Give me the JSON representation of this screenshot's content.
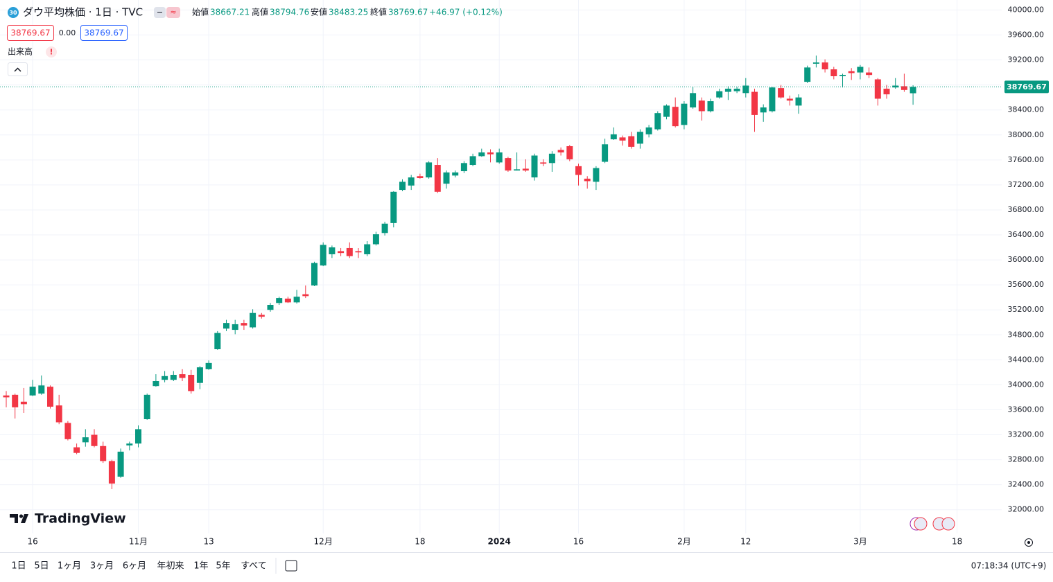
{
  "chart_data": {
    "type": "candlestick",
    "title": "ダウ平均株価 · 1日 · TVC",
    "ohlc_labels": [
      "始値",
      "高値",
      "安値",
      "終値"
    ],
    "change": "+46.97 (+0.12%)",
    "spread": "0.00",
    "volume_label": "出来高",
    "up_color": "#089981",
    "down_color": "#f23645",
    "open": [
      33830,
      33840,
      33730,
      33830,
      33860,
      33970,
      33670,
      33390,
      33000,
      33080,
      33200,
      33020,
      32780,
      32530,
      33030,
      33060,
      33450,
      33980,
      34080,
      34080,
      34170,
      34160,
      34030,
      34250,
      34570,
      34900,
      34880,
      34990,
      34920,
      35120,
      35200,
      35310,
      35380,
      35320,
      35450,
      35590,
      35910,
      36090,
      36140,
      36190,
      36140,
      36090,
      36250,
      36430,
      36590,
      37120,
      37190,
      37340,
      37320,
      37520,
      37220,
      37350,
      37420,
      37520,
      37660,
      37720,
      37560,
      37630,
      37430,
      37460,
      37320,
      37560,
      37550,
      37760,
      37820,
      37500,
      37300,
      37250,
      37570,
      37930,
      37960,
      37980,
      37860,
      38010,
      38090,
      38290,
      38450,
      38160,
      38440,
      38550,
      38380,
      38600,
      38690,
      38700,
      38670,
      38690,
      38360,
      38380,
      38750,
      38580,
      38470,
      38850,
      39140,
      39160,
      39050,
      38940,
      39020,
      39000,
      39000,
      38890,
      38740,
      38760,
      38780,
      38667.21
    ],
    "high": [
      33900,
      33860,
      33950,
      34080,
      34150,
      33990,
      33840,
      33420,
      33060,
      33290,
      33290,
      33090,
      32800,
      32980,
      33090,
      33350,
      33860,
      34170,
      34220,
      34220,
      34250,
      34240,
      34300,
      34390,
      34860,
      35040,
      35040,
      35040,
      35210,
      35150,
      35310,
      35410,
      35410,
      35520,
      35590,
      35970,
      36280,
      36230,
      36190,
      36280,
      36190,
      36300,
      36450,
      36610,
      37100,
      37290,
      37360,
      37380,
      37580,
      37630,
      37430,
      37430,
      37580,
      37700,
      37780,
      37770,
      37780,
      37650,
      37720,
      37610,
      37700,
      37610,
      37740,
      37800,
      37840,
      37540,
      37340,
      37500,
      37940,
      38120,
      37990,
      38050,
      38090,
      38160,
      38380,
      38490,
      38600,
      38540,
      38770,
      38600,
      38580,
      38740,
      38780,
      38770,
      38910,
      38740,
      38490,
      38770,
      38800,
      38630,
      38650,
      39110,
      39270,
      39210,
      39090,
      38980,
      39070,
      39120,
      39080,
      38910,
      38800,
      38910,
      38980,
      38794.76
    ],
    "low": [
      33640,
      33460,
      33550,
      33820,
      33840,
      33620,
      33370,
      33110,
      32890,
      33010,
      33000,
      32750,
      32330,
      32510,
      32950,
      33000,
      33440,
      33970,
      34040,
      34060,
      34060,
      33860,
      33930,
      34240,
      34560,
      34860,
      34810,
      34880,
      34900,
      35060,
      35170,
      35280,
      35310,
      35300,
      35390,
      35580,
      35900,
      36030,
      36060,
      36030,
      36030,
      36060,
      36230,
      36390,
      36520,
      37100,
      37120,
      37300,
      37300,
      37070,
      37140,
      37320,
      37390,
      37500,
      37650,
      37560,
      37540,
      37410,
      37430,
      37410,
      37270,
      37500,
      37410,
      37670,
      37580,
      37190,
      37140,
      37120,
      37550,
      37920,
      37830,
      37780,
      37780,
      37960,
      38070,
      38250,
      38120,
      38090,
      38420,
      38230,
      38360,
      38580,
      38560,
      38670,
      38600,
      38050,
      38210,
      38360,
      38580,
      38470,
      38340,
      38830,
      39080,
      39000,
      38890,
      38760,
      38880,
      38890,
      38910,
      38470,
      38580,
      38740,
      38690,
      38483.25
    ],
    "close": [
      33800,
      33640,
      33690,
      33970,
      33990,
      33650,
      33400,
      33130,
      32910,
      33160,
      33020,
      32780,
      32420,
      32930,
      33060,
      33290,
      33840,
      34060,
      34140,
      34160,
      34110,
      33900,
      34280,
      34350,
      34830,
      34990,
      34970,
      34950,
      35150,
      35090,
      35280,
      35390,
      35320,
      35410,
      35420,
      35950,
      36240,
      36200,
      36110,
      36060,
      36120,
      36250,
      36410,
      36580,
      37090,
      37250,
      37320,
      37310,
      37560,
      37090,
      37400,
      37400,
      37550,
      37660,
      37720,
      37690,
      37720,
      37430,
      37450,
      37430,
      37670,
      37540,
      37700,
      37720,
      37610,
      37360,
      37260,
      37470,
      37850,
      38010,
      37910,
      37810,
      38050,
      38120,
      38350,
      38470,
      38140,
      38500,
      38670,
      38380,
      38540,
      38700,
      38740,
      38740,
      38790,
      38320,
      38440,
      38760,
      38600,
      38550,
      38600,
      39080,
      39160,
      39050,
      38940,
      38960,
      38990,
      39090,
      38960,
      38580,
      38650,
      38790,
      38720,
      38769.67
    ],
    "ylim": [
      31620,
      40160
    ],
    "yticks": [
      {
        "value": 40000,
        "label": "40000.00"
      },
      {
        "value": 39600,
        "label": "39600.00"
      },
      {
        "value": 39200,
        "label": "39200.00"
      },
      {
        "value": 38800,
        "label": "38800.00"
      },
      {
        "value": 38400,
        "label": "38400.00"
      },
      {
        "value": 38000,
        "label": "38000.00"
      },
      {
        "value": 37600,
        "label": "37600.00"
      },
      {
        "value": 37200,
        "label": "37200.00"
      },
      {
        "value": 36800,
        "label": "36800.00"
      },
      {
        "value": 36400,
        "label": "36400.00"
      },
      {
        "value": 36000,
        "label": "36000.00"
      },
      {
        "value": 35600,
        "label": "35600.00"
      },
      {
        "value": 35200,
        "label": "35200.00"
      },
      {
        "value": 34800,
        "label": "34800.00"
      },
      {
        "value": 34400,
        "label": "34400.00"
      },
      {
        "value": 34000,
        "label": "34000.00"
      },
      {
        "value": 33600,
        "label": "33600.00"
      },
      {
        "value": 33200,
        "label": "33200.00"
      },
      {
        "value": 32800,
        "label": "32800.00"
      },
      {
        "value": 32400,
        "label": "32400.00"
      },
      {
        "value": 32000,
        "label": "32000.00"
      }
    ],
    "xticks": [
      {
        "value": 3,
        "label": "16"
      },
      {
        "value": 15,
        "label": "11月"
      },
      {
        "value": 23,
        "label": "13"
      },
      {
        "value": 36,
        "label": "12月"
      },
      {
        "value": 47,
        "label": "18"
      },
      {
        "value": 56,
        "label": "2024"
      },
      {
        "value": 65,
        "label": "16"
      },
      {
        "value": 77,
        "label": "2月"
      },
      {
        "value": 84,
        "label": "12"
      },
      {
        "value": 97,
        "label": "3月"
      },
      {
        "value": 108,
        "label": "18"
      }
    ],
    "grid": true
  },
  "ui": {
    "badge": "30",
    "logo": "TradingView",
    "ranges": [
      "1日",
      "5日",
      "1ヶ月",
      "3ヶ月",
      "6ヶ月",
      "年初来",
      "1年",
      "5年",
      "すべて"
    ],
    "clock": "07:18:34 (UTC+9)"
  }
}
